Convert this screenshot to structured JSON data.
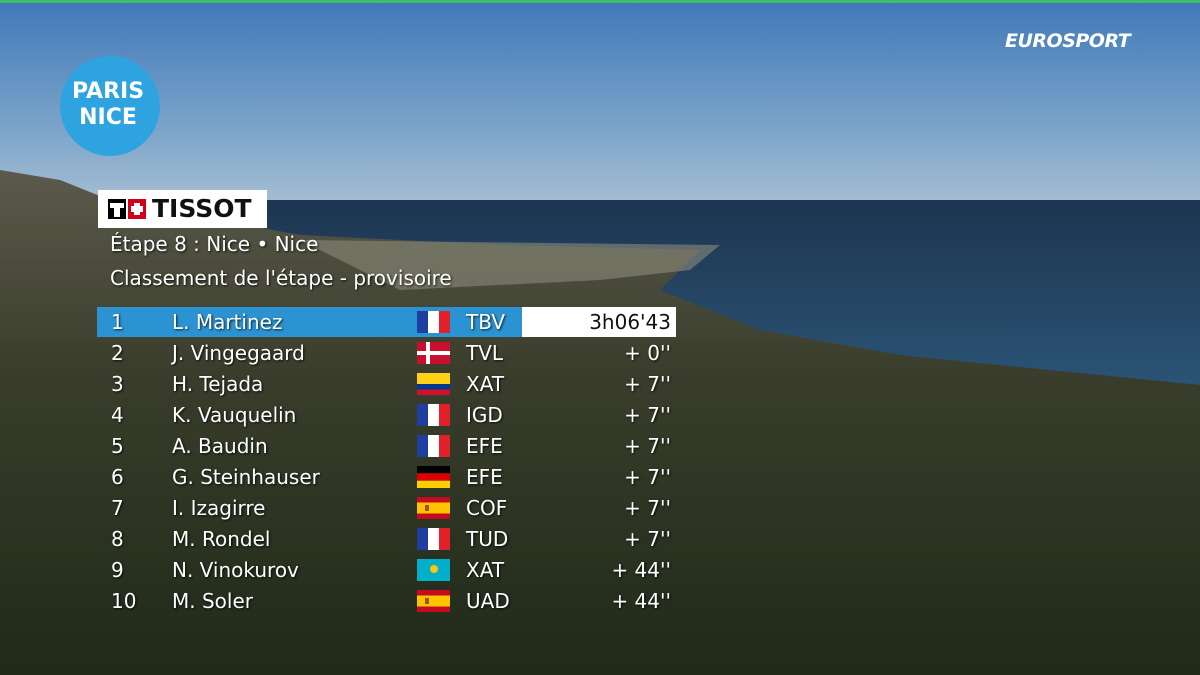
{
  "header": {
    "broadcaster": "EUROSPORT",
    "race_logo": [
      "PARIS",
      "NICE"
    ],
    "sponsor": "TISSOT",
    "stage": "Étape 8 : Nice • Nice",
    "subtitle": "Classement de l'étape - provisoire"
  },
  "table": {
    "rows": [
      [
        "1",
        "L. Martinez",
        "TBV",
        "3h06'43"
      ],
      [
        "2",
        "J. Vingegaard",
        "TVL",
        "+ 0''"
      ],
      [
        "3",
        "H. Tejada",
        "XAT",
        "+ 7''"
      ],
      [
        "4",
        "K. Vauquelin",
        "IGD",
        "+ 7''"
      ],
      [
        "5",
        "A. Baudin",
        "EFE",
        "+ 7''"
      ],
      [
        "6",
        "G. Steinhauser",
        "EFE",
        "+ 7''"
      ],
      [
        "7",
        "I. Izagirre",
        "COF",
        "+ 7''"
      ],
      [
        "8",
        "M. Rondel",
        "TUD",
        "+ 7''"
      ],
      [
        "9",
        "N. Vinokurov",
        "XAT",
        "+ 44''"
      ],
      [
        "10",
        "M. Soler",
        "UAD",
        "+ 44''"
      ]
    ]
  }
}
